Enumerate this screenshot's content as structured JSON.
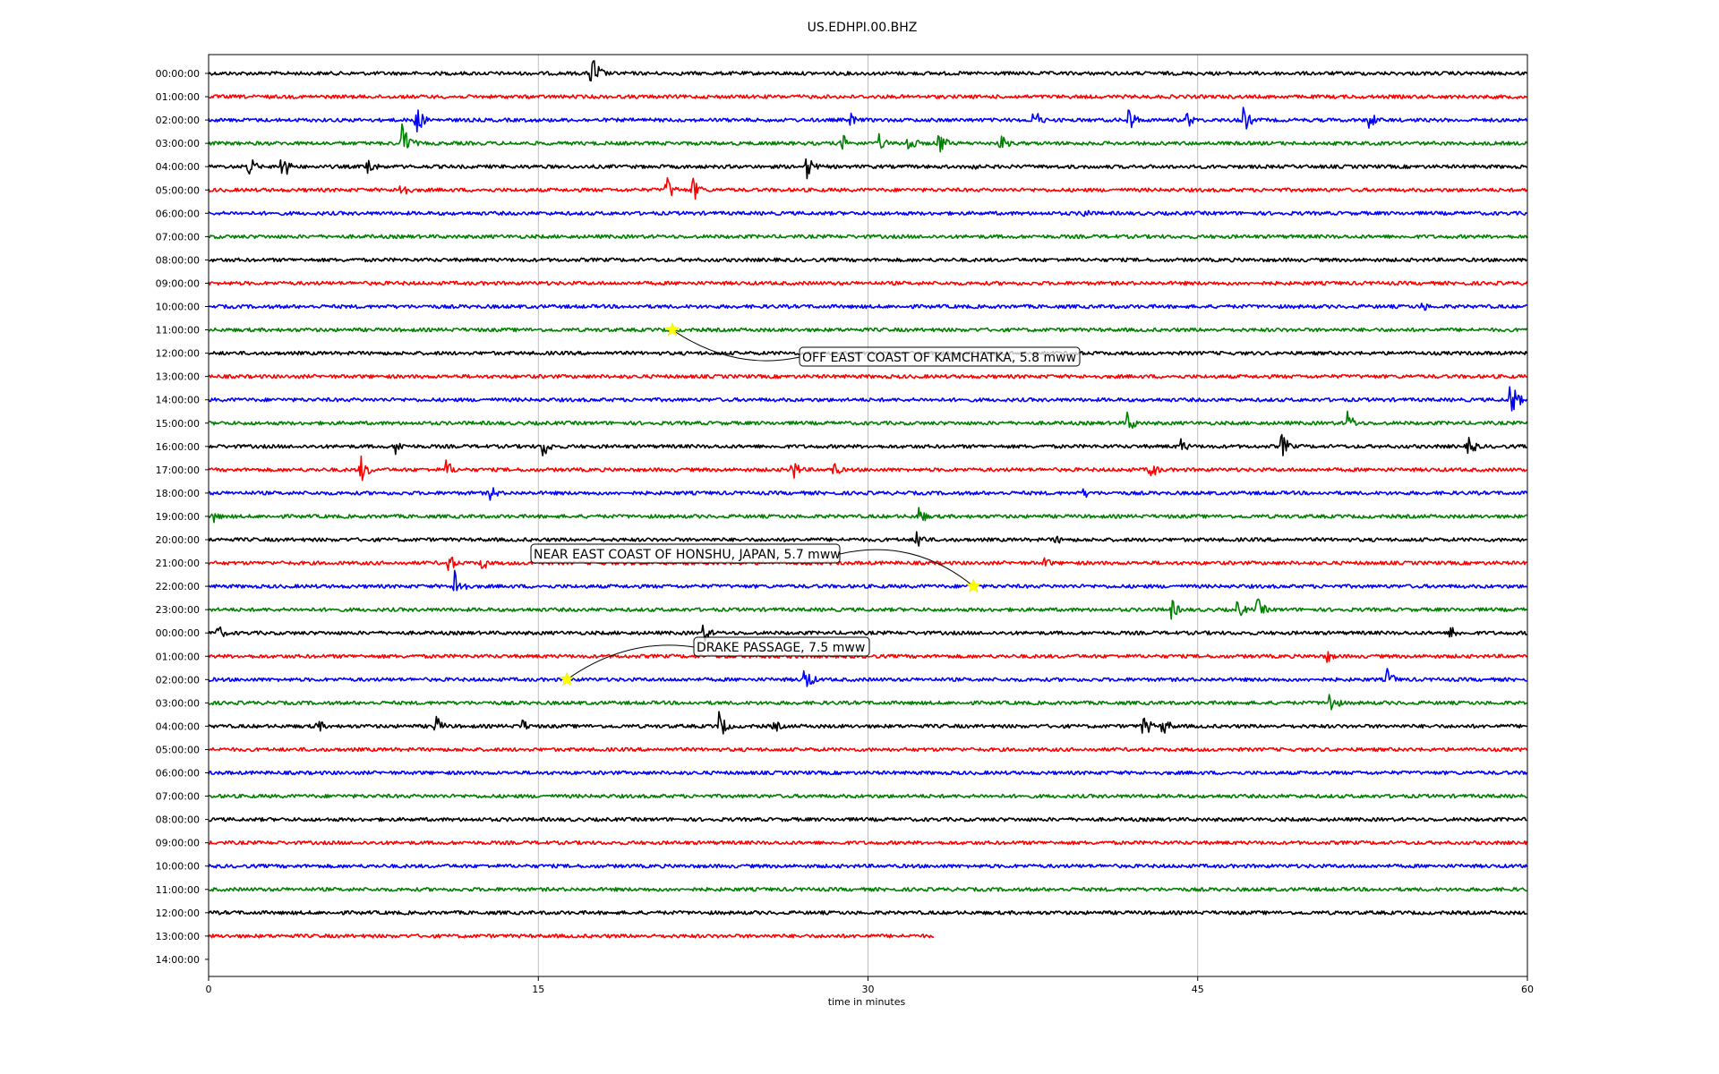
{
  "chart_data": {
    "type": "line",
    "title": "US.EDHPI.00.BHZ",
    "xlabel": "time in minutes",
    "ylabel": "",
    "xlim": [
      0,
      60
    ],
    "x_ticks": [
      0,
      15,
      30,
      45,
      60
    ],
    "x_grid": true,
    "y_grid": false,
    "trace_colors": [
      "#000000",
      "#ff0000",
      "#0000ff",
      "#008000"
    ],
    "rows": [
      {
        "label": "00:00:00",
        "end_minute": 60,
        "events": [
          {
            "t": 17.4,
            "a": 1.5
          }
        ]
      },
      {
        "label": "01:00:00",
        "end_minute": 60,
        "events": []
      },
      {
        "label": "02:00:00",
        "end_minute": 60,
        "events": [
          {
            "t": 9.4,
            "a": 1.1
          },
          {
            "t": 29.2,
            "a": 0.5
          },
          {
            "t": 37.5,
            "a": 0.9
          },
          {
            "t": 41.8,
            "a": 1.0
          },
          {
            "t": 44.5,
            "a": 0.6
          },
          {
            "t": 47.0,
            "a": 1.1
          },
          {
            "t": 52.8,
            "a": 0.7
          }
        ]
      },
      {
        "label": "03:00:00",
        "end_minute": 60,
        "events": [
          {
            "t": 8.8,
            "a": 1.4
          },
          {
            "t": 28.8,
            "a": 0.7
          },
          {
            "t": 30.5,
            "a": 0.6
          },
          {
            "t": 31.8,
            "a": 0.8
          },
          {
            "t": 33.2,
            "a": 0.9
          },
          {
            "t": 36.0,
            "a": 0.7
          }
        ]
      },
      {
        "label": "04:00:00",
        "end_minute": 60,
        "events": [
          {
            "t": 1.8,
            "a": 0.8
          },
          {
            "t": 3.3,
            "a": 1.1
          },
          {
            "t": 7.2,
            "a": 0.8
          },
          {
            "t": 27.2,
            "a": 0.9
          },
          {
            "t": 34.5,
            "a": 0.6
          }
        ]
      },
      {
        "label": "05:00:00",
        "end_minute": 60,
        "events": [
          {
            "t": 8.7,
            "a": 0.8
          },
          {
            "t": 20.8,
            "a": 1.0
          },
          {
            "t": 22.0,
            "a": 0.9
          }
        ]
      },
      {
        "label": "06:00:00",
        "end_minute": 60,
        "events": [
          {
            "t": 39.8,
            "a": 0.5
          }
        ]
      },
      {
        "label": "07:00:00",
        "end_minute": 60,
        "events": []
      },
      {
        "label": "08:00:00",
        "end_minute": 60,
        "events": []
      },
      {
        "label": "09:00:00",
        "end_minute": 60,
        "events": []
      },
      {
        "label": "10:00:00",
        "end_minute": 60,
        "events": [
          {
            "t": 55.2,
            "a": 0.4
          }
        ]
      },
      {
        "label": "11:00:00",
        "end_minute": 60,
        "events": []
      },
      {
        "label": "12:00:00",
        "end_minute": 60,
        "events": []
      },
      {
        "label": "13:00:00",
        "end_minute": 60,
        "events": []
      },
      {
        "label": "14:00:00",
        "end_minute": 60,
        "events": [
          {
            "t": 59.2,
            "a": 1.4
          }
        ]
      },
      {
        "label": "15:00:00",
        "end_minute": 60,
        "events": [
          {
            "t": 41.8,
            "a": 0.8
          },
          {
            "t": 51.8,
            "a": 0.8
          }
        ]
      },
      {
        "label": "16:00:00",
        "end_minute": 60,
        "events": [
          {
            "t": 8.5,
            "a": 0.6
          },
          {
            "t": 15.2,
            "a": 0.8
          },
          {
            "t": 44.2,
            "a": 0.6
          },
          {
            "t": 48.8,
            "a": 0.9
          },
          {
            "t": 57.3,
            "a": 0.8
          }
        ]
      },
      {
        "label": "17:00:00",
        "end_minute": 60,
        "events": [
          {
            "t": 6.9,
            "a": 1.0
          },
          {
            "t": 10.8,
            "a": 0.7
          },
          {
            "t": 26.5,
            "a": 0.9
          },
          {
            "t": 28.4,
            "a": 0.6
          },
          {
            "t": 42.8,
            "a": 0.8
          }
        ]
      },
      {
        "label": "18:00:00",
        "end_minute": 60,
        "events": [
          {
            "t": 12.8,
            "a": 0.6
          },
          {
            "t": 39.8,
            "a": 0.4
          }
        ]
      },
      {
        "label": "19:00:00",
        "end_minute": 60,
        "events": [
          {
            "t": 0.2,
            "a": 0.5
          },
          {
            "t": 32.3,
            "a": 0.7
          }
        ]
      },
      {
        "label": "20:00:00",
        "end_minute": 60,
        "events": [
          {
            "t": 32.2,
            "a": 0.8
          },
          {
            "t": 38.5,
            "a": 0.4
          }
        ]
      },
      {
        "label": "21:00:00",
        "end_minute": 60,
        "events": [
          {
            "t": 10.9,
            "a": 0.7
          },
          {
            "t": 12.4,
            "a": 0.6
          },
          {
            "t": 38.0,
            "a": 0.5
          }
        ]
      },
      {
        "label": "22:00:00",
        "end_minute": 60,
        "events": [
          {
            "t": 11.2,
            "a": 1.3
          }
        ]
      },
      {
        "label": "23:00:00",
        "end_minute": 60,
        "events": [
          {
            "t": 43.8,
            "a": 0.7
          },
          {
            "t": 46.8,
            "a": 0.7
          },
          {
            "t": 47.7,
            "a": 0.8
          }
        ]
      },
      {
        "label": "00:00:00",
        "end_minute": 60,
        "events": [
          {
            "t": 0.4,
            "a": 0.6
          },
          {
            "t": 22.5,
            "a": 0.7
          },
          {
            "t": 56.5,
            "a": 0.6
          }
        ]
      },
      {
        "label": "01:00:00",
        "end_minute": 60,
        "events": [
          {
            "t": 50.8,
            "a": 0.6
          }
        ]
      },
      {
        "label": "02:00:00",
        "end_minute": 60,
        "events": [
          {
            "t": 27.1,
            "a": 1.0
          },
          {
            "t": 53.6,
            "a": 0.8
          }
        ]
      },
      {
        "label": "03:00:00",
        "end_minute": 60,
        "events": [
          {
            "t": 51.0,
            "a": 0.9
          }
        ]
      },
      {
        "label": "04:00:00",
        "end_minute": 60,
        "events": [
          {
            "t": 4.9,
            "a": 0.6
          },
          {
            "t": 10.3,
            "a": 0.8
          },
          {
            "t": 14.2,
            "a": 0.6
          },
          {
            "t": 23.2,
            "a": 1.0
          },
          {
            "t": 25.7,
            "a": 0.5
          },
          {
            "t": 42.5,
            "a": 0.9
          },
          {
            "t": 43.4,
            "a": 0.8
          }
        ]
      },
      {
        "label": "05:00:00",
        "end_minute": 60,
        "events": []
      },
      {
        "label": "06:00:00",
        "end_minute": 60,
        "events": []
      },
      {
        "label": "07:00:00",
        "end_minute": 60,
        "events": []
      },
      {
        "label": "08:00:00",
        "end_minute": 60,
        "events": []
      },
      {
        "label": "09:00:00",
        "end_minute": 60,
        "events": []
      },
      {
        "label": "10:00:00",
        "end_minute": 60,
        "events": []
      },
      {
        "label": "11:00:00",
        "end_minute": 60,
        "events": []
      },
      {
        "label": "12:00:00",
        "end_minute": 60,
        "events": []
      },
      {
        "label": "13:00:00",
        "end_minute": 33,
        "events": []
      },
      {
        "label": "14:00:00",
        "end_minute": 0,
        "events": []
      }
    ],
    "annotations": [
      {
        "text": "OFF EAST COAST OF KAMCHATKA, 5.8 mww",
        "row": 11,
        "minute": 21.1,
        "marker_color": "#ffff00"
      },
      {
        "text": "NEAR EAST COAST OF HONSHU, JAPAN, 5.7 mww",
        "row": 22,
        "minute": 34.8,
        "marker_color": "#ffff00"
      },
      {
        "text": "DRAKE PASSAGE, 7.5 mww",
        "row": 26,
        "minute": 16.3,
        "marker_color": "#ffff00"
      }
    ]
  }
}
